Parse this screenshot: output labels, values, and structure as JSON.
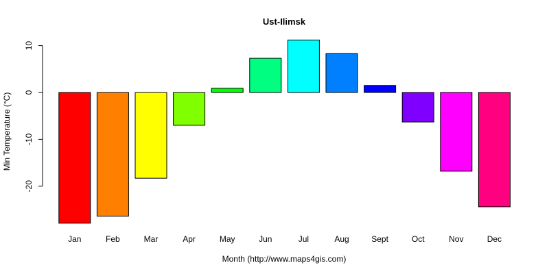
{
  "chart_data": {
    "type": "bar",
    "title": "Ust-Ilimsk",
    "xlabel": "Month (http://www.maps4gis.com)",
    "ylabel": "Min Temperature (°C)",
    "categories": [
      "Jan",
      "Feb",
      "Mar",
      "Apr",
      "May",
      "Jun",
      "Jul",
      "Aug",
      "Sept",
      "Oct",
      "Nov",
      "Dec"
    ],
    "values": [
      -27.9,
      -26.4,
      -18.3,
      -7.0,
      0.9,
      7.3,
      11.2,
      8.3,
      1.5,
      -6.3,
      -16.8,
      -24.4
    ],
    "colors": [
      "#FF0000",
      "#FF8000",
      "#FFFF00",
      "#80FF00",
      "#00FF00",
      "#00FF80",
      "#00FFFF",
      "#0080FF",
      "#0000FF",
      "#8000FF",
      "#FF00FF",
      "#FF0080"
    ],
    "yticks": [
      -20,
      -10,
      0,
      10
    ],
    "ylim": [
      -28,
      11.2
    ],
    "grid": false,
    "legend": "none"
  }
}
